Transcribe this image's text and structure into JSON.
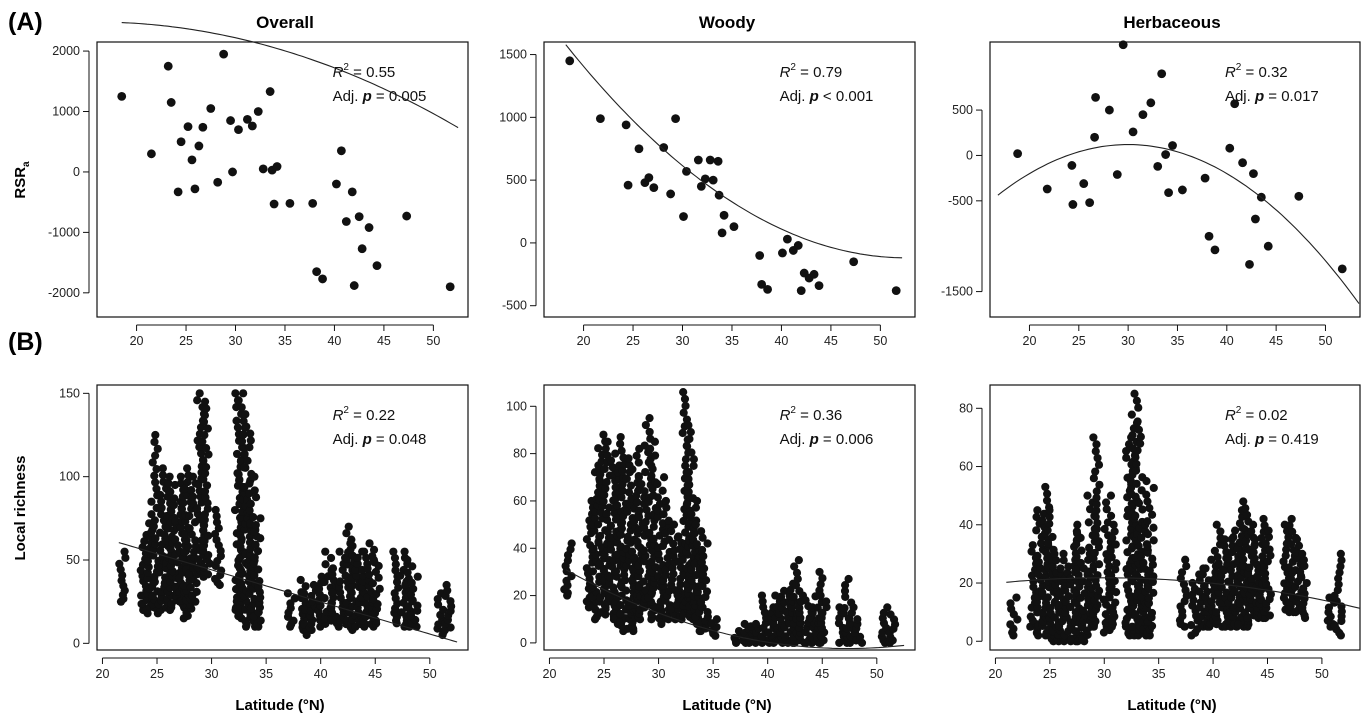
{
  "figure": {
    "row_labels": [
      "(A)",
      "(B)"
    ],
    "xlabel": "Latitude (°N)"
  },
  "chart_data": [
    {
      "type": "scatter",
      "row": 0,
      "col": 0,
      "title": "Overall",
      "ylabel": "RSR",
      "ylabel_sub": "a",
      "xlabel": "",
      "xlim": [
        16,
        53.5
      ],
      "ylim": [
        -2400,
        2150
      ],
      "xticks": [
        20,
        25,
        30,
        35,
        40,
        45,
        50
      ],
      "yticks": [
        -2000,
        -1000,
        0,
        1000,
        2000
      ],
      "stats": {
        "r2": "= 0.55",
        "adjp": "= 0.005"
      },
      "fit": {
        "type": "poly2",
        "range": [
          18.5,
          52.5
        ],
        "coef": [
          2220,
          -36.8,
          -1.3
        ]
      },
      "points": [
        [
          18.5,
          1250
        ],
        [
          21.5,
          300
        ],
        [
          23.2,
          1750
        ],
        [
          23.5,
          1150
        ],
        [
          24.2,
          -330
        ],
        [
          24.5,
          500
        ],
        [
          25.2,
          750
        ],
        [
          25.6,
          200
        ],
        [
          25.9,
          -280
        ],
        [
          26.3,
          430
        ],
        [
          26.7,
          740
        ],
        [
          27.5,
          1050
        ],
        [
          28.2,
          -170
        ],
        [
          28.8,
          1950
        ],
        [
          29.5,
          850
        ],
        [
          29.7,
          0
        ],
        [
          30.3,
          700
        ],
        [
          31.2,
          870
        ],
        [
          31.7,
          760
        ],
        [
          32.3,
          1000
        ],
        [
          32.8,
          50
        ],
        [
          33.5,
          1330
        ],
        [
          33.7,
          30
        ],
        [
          33.9,
          -530
        ],
        [
          34.2,
          90
        ],
        [
          35.5,
          -520
        ],
        [
          37.8,
          -520
        ],
        [
          38.2,
          -1650
        ],
        [
          38.8,
          -1770
        ],
        [
          40.2,
          -200
        ],
        [
          40.7,
          350
        ],
        [
          41.2,
          -820
        ],
        [
          41.8,
          -330
        ],
        [
          42.0,
          -1880
        ],
        [
          42.5,
          -740
        ],
        [
          42.8,
          -1270
        ],
        [
          43.5,
          -920
        ],
        [
          44.3,
          -1550
        ],
        [
          47.3,
          -730
        ],
        [
          51.7,
          -1900
        ]
      ]
    },
    {
      "type": "scatter",
      "row": 0,
      "col": 1,
      "title": "Woody",
      "ylabel": "",
      "xlabel": "",
      "xlim": [
        16,
        53.5
      ],
      "ylim": [
        -590,
        1600
      ],
      "xticks": [
        20,
        25,
        30,
        35,
        40,
        45,
        50
      ],
      "yticks": [
        -500,
        0,
        500,
        1000,
        1500
      ],
      "stats": {
        "r2": "= 0.79",
        "adjp": "< 0.001"
      },
      "fit": {
        "type": "poly2",
        "range": [
          18.2,
          52.2
        ],
        "coef": [
          615,
          -64.8,
          1.43
        ]
      },
      "points": [
        [
          18.6,
          1450
        ],
        [
          21.7,
          990
        ],
        [
          24.3,
          940
        ],
        [
          24.5,
          460
        ],
        [
          25.6,
          750
        ],
        [
          26.2,
          480
        ],
        [
          26.6,
          520
        ],
        [
          27.1,
          440
        ],
        [
          28.1,
          760
        ],
        [
          28.8,
          390
        ],
        [
          29.3,
          990
        ],
        [
          30.1,
          210
        ],
        [
          30.4,
          570
        ],
        [
          31.6,
          660
        ],
        [
          31.9,
          450
        ],
        [
          32.3,
          510
        ],
        [
          32.8,
          660
        ],
        [
          33.1,
          500
        ],
        [
          33.6,
          650
        ],
        [
          33.7,
          380
        ],
        [
          34.0,
          80
        ],
        [
          34.2,
          220
        ],
        [
          35.2,
          130
        ],
        [
          37.8,
          -100
        ],
        [
          38.0,
          -330
        ],
        [
          38.6,
          -370
        ],
        [
          40.1,
          -80
        ],
        [
          40.6,
          30
        ],
        [
          41.2,
          -60
        ],
        [
          41.7,
          -20
        ],
        [
          42.0,
          -380
        ],
        [
          42.3,
          -240
        ],
        [
          42.8,
          -280
        ],
        [
          43.3,
          -250
        ],
        [
          43.8,
          -340
        ],
        [
          47.3,
          -150
        ],
        [
          51.6,
          -380
        ]
      ]
    },
    {
      "type": "scatter",
      "row": 0,
      "col": 2,
      "title": "Herbaceous",
      "ylabel": "",
      "xlabel": "",
      "xlim": [
        16,
        53.5
      ],
      "ylim": [
        -1780,
        1250
      ],
      "xticks": [
        20,
        25,
        30,
        35,
        40,
        45,
        50
      ],
      "yticks": [
        -1500,
        -500,
        0,
        500
      ],
      "stats": {
        "r2": "= 0.32",
        "adjp": "= 0.017"
      },
      "fit": {
        "type": "poly2",
        "range": [
          16.8,
          53.4
        ],
        "coef": [
          120,
          0,
          -3.2
        ]
      },
      "points": [
        [
          18.8,
          20
        ],
        [
          21.8,
          -370
        ],
        [
          24.3,
          -110
        ],
        [
          24.4,
          -540
        ],
        [
          25.5,
          -310
        ],
        [
          26.1,
          -520
        ],
        [
          26.6,
          200
        ],
        [
          26.7,
          640
        ],
        [
          28.1,
          500
        ],
        [
          28.9,
          -210
        ],
        [
          29.5,
          1220
        ],
        [
          30.5,
          260
        ],
        [
          31.5,
          450
        ],
        [
          32.3,
          580
        ],
        [
          33.0,
          -120
        ],
        [
          33.4,
          900
        ],
        [
          33.8,
          10
        ],
        [
          34.1,
          -410
        ],
        [
          34.5,
          110
        ],
        [
          35.5,
          -380
        ],
        [
          37.8,
          -250
        ],
        [
          38.2,
          -890
        ],
        [
          38.8,
          -1040
        ],
        [
          40.3,
          80
        ],
        [
          40.8,
          570
        ],
        [
          41.6,
          -80
        ],
        [
          42.3,
          -1200
        ],
        [
          42.7,
          -200
        ],
        [
          42.9,
          -700
        ],
        [
          43.5,
          -460
        ],
        [
          44.2,
          -1000
        ],
        [
          47.3,
          -450
        ],
        [
          51.7,
          -1250
        ]
      ]
    },
    {
      "type": "scatter",
      "row": 1,
      "col": 0,
      "title": "",
      "ylabel": "Local richness",
      "xlabel": "Latitude (°N)",
      "xlim": [
        19.5,
        53.5
      ],
      "ylim": [
        -4,
        155
      ],
      "xticks": [
        20,
        25,
        30,
        35,
        40,
        45,
        50
      ],
      "yticks": [
        0,
        50,
        100,
        150
      ],
      "stats": {
        "r2": "= 0.22",
        "adjp": "= 0.048"
      },
      "fit": {
        "type": "poly2",
        "range": [
          21.5,
          52.5
        ],
        "coef": [
          44.1,
          -1.925,
          0
        ]
      },
      "clusters": [
        [
          21.8,
          25,
          55
        ],
        [
          23.7,
          20,
          65
        ],
        [
          24.3,
          18,
          72
        ],
        [
          24.8,
          18,
          125
        ],
        [
          25.5,
          20,
          105
        ],
        [
          26.0,
          25,
          100
        ],
        [
          26.5,
          20,
          95
        ],
        [
          27.0,
          25,
          85
        ],
        [
          27.4,
          20,
          100
        ],
        [
          27.8,
          15,
          105
        ],
        [
          28.3,
          25,
          100
        ],
        [
          29.0,
          40,
          150
        ],
        [
          29.5,
          40,
          145
        ],
        [
          30.6,
          35,
          80
        ],
        [
          32.5,
          20,
          150
        ],
        [
          32.8,
          15,
          150
        ],
        [
          33.3,
          10,
          130
        ],
        [
          33.8,
          10,
          100
        ],
        [
          34.2,
          10,
          75
        ],
        [
          37.3,
          10,
          30
        ],
        [
          38.3,
          8,
          38
        ],
        [
          38.8,
          5,
          30
        ],
        [
          39.3,
          8,
          35
        ],
        [
          40.1,
          10,
          40
        ],
        [
          40.7,
          15,
          55
        ],
        [
          41.2,
          12,
          45
        ],
        [
          42.0,
          10,
          55
        ],
        [
          42.6,
          10,
          70
        ],
        [
          43.0,
          8,
          60
        ],
        [
          43.5,
          10,
          55
        ],
        [
          44.0,
          10,
          55
        ],
        [
          44.6,
          10,
          60
        ],
        [
          45.1,
          12,
          50
        ],
        [
          47.0,
          12,
          55
        ],
        [
          47.6,
          10,
          55
        ],
        [
          48.1,
          10,
          50
        ],
        [
          48.6,
          10,
          40
        ],
        [
          51.0,
          5,
          30
        ],
        [
          51.7,
          8,
          35
        ]
      ]
    },
    {
      "type": "scatter",
      "row": 1,
      "col": 1,
      "title": "",
      "ylabel": "",
      "xlabel": "Latitude (°N)",
      "xlim": [
        19.5,
        53.5
      ],
      "ylim": [
        -3,
        109
      ],
      "xticks": [
        20,
        25,
        30,
        35,
        40,
        45,
        50
      ],
      "yticks": [
        0,
        20,
        40,
        60,
        80,
        100
      ],
      "stats": {
        "r2": "= 0.36",
        "adjp": "= 0.006"
      },
      "fit": {
        "type": "poly2",
        "range": [
          21.5,
          52.5
        ],
        "coef": [
          12.62,
          -1.732,
          0.05
        ]
      },
      "clusters": [
        [
          21.7,
          20,
          42
        ],
        [
          23.7,
          15,
          60
        ],
        [
          24.3,
          10,
          75
        ],
        [
          24.8,
          12,
          88
        ],
        [
          25.3,
          15,
          85
        ],
        [
          25.8,
          10,
          80
        ],
        [
          26.3,
          8,
          75
        ],
        [
          26.8,
          5,
          87
        ],
        [
          27.4,
          10,
          78
        ],
        [
          27.9,
          5,
          82
        ],
        [
          28.4,
          10,
          70
        ],
        [
          29.0,
          15,
          95
        ],
        [
          29.4,
          10,
          85
        ],
        [
          30.2,
          8,
          70
        ],
        [
          30.7,
          10,
          60
        ],
        [
          31.5,
          10,
          50
        ],
        [
          32.0,
          10,
          45
        ],
        [
          32.5,
          12,
          106
        ],
        [
          32.9,
          10,
          92
        ],
        [
          33.3,
          8,
          60
        ],
        [
          33.7,
          5,
          50
        ],
        [
          34.2,
          5,
          42
        ],
        [
          35.2,
          3,
          10
        ],
        [
          37.3,
          0,
          5
        ],
        [
          37.9,
          0,
          8
        ],
        [
          38.4,
          0,
          7
        ],
        [
          38.9,
          0,
          8
        ],
        [
          39.8,
          0,
          20
        ],
        [
          40.3,
          0,
          15
        ],
        [
          40.8,
          0,
          20
        ],
        [
          41.3,
          0,
          22
        ],
        [
          41.8,
          0,
          18
        ],
        [
          42.3,
          0,
          25
        ],
        [
          42.7,
          0,
          35
        ],
        [
          43.2,
          0,
          20
        ],
        [
          43.7,
          0,
          18
        ],
        [
          44.2,
          0,
          15
        ],
        [
          44.7,
          0,
          30
        ],
        [
          45.1,
          0,
          20
        ],
        [
          46.8,
          0,
          15
        ],
        [
          47.3,
          0,
          27
        ],
        [
          47.8,
          0,
          15
        ],
        [
          48.3,
          0,
          10
        ],
        [
          50.8,
          0,
          15
        ],
        [
          51.5,
          0,
          12
        ]
      ]
    },
    {
      "type": "scatter",
      "row": 1,
      "col": 2,
      "title": "",
      "ylabel": "",
      "xlabel": "Latitude (°N)",
      "xlim": [
        19.5,
        53.5
      ],
      "ylim": [
        -3,
        88
      ],
      "xticks": [
        20,
        25,
        30,
        35,
        40,
        45,
        50
      ],
      "yticks": [
        0,
        20,
        40,
        60,
        80
      ],
      "stats": {
        "r2": "= 0.02",
        "adjp": "= 0.419"
      },
      "fit": {
        "type": "poly2",
        "range": [
          21.0,
          53.5
        ],
        "coef": [
          21.8,
          0.0,
          -0.019
        ]
      },
      "clusters": [
        [
          21.7,
          2,
          15
        ],
        [
          23.5,
          5,
          33
        ],
        [
          24.1,
          2,
          45
        ],
        [
          24.6,
          2,
          53
        ],
        [
          25.1,
          0,
          45
        ],
        [
          25.6,
          0,
          30
        ],
        [
          26.1,
          0,
          25
        ],
        [
          26.6,
          0,
          30
        ],
        [
          27.2,
          0,
          37
        ],
        [
          27.7,
          0,
          40
        ],
        [
          28.2,
          0,
          25
        ],
        [
          28.8,
          5,
          50
        ],
        [
          29.3,
          5,
          70
        ],
        [
          30.3,
          3,
          50
        ],
        [
          30.8,
          5,
          40
        ],
        [
          32.3,
          2,
          70
        ],
        [
          32.8,
          2,
          85
        ],
        [
          33.2,
          2,
          75
        ],
        [
          33.7,
          2,
          40
        ],
        [
          34.2,
          2,
          55
        ],
        [
          37.3,
          5,
          28
        ],
        [
          38.3,
          2,
          20
        ],
        [
          38.9,
          5,
          25
        ],
        [
          39.4,
          5,
          25
        ],
        [
          40.0,
          5,
          28
        ],
        [
          40.5,
          5,
          40
        ],
        [
          41.1,
          5,
          35
        ],
        [
          41.7,
          5,
          35
        ],
        [
          42.2,
          5,
          38
        ],
        [
          42.6,
          5,
          45
        ],
        [
          43.0,
          5,
          48
        ],
        [
          43.5,
          8,
          40
        ],
        [
          44.0,
          8,
          35
        ],
        [
          44.5,
          8,
          42
        ],
        [
          45.0,
          8,
          38
        ],
        [
          46.8,
          10,
          40
        ],
        [
          47.3,
          10,
          42
        ],
        [
          47.8,
          10,
          35
        ],
        [
          48.3,
          8,
          30
        ],
        [
          50.8,
          5,
          15
        ],
        [
          51.5,
          2,
          30
        ]
      ]
    }
  ]
}
